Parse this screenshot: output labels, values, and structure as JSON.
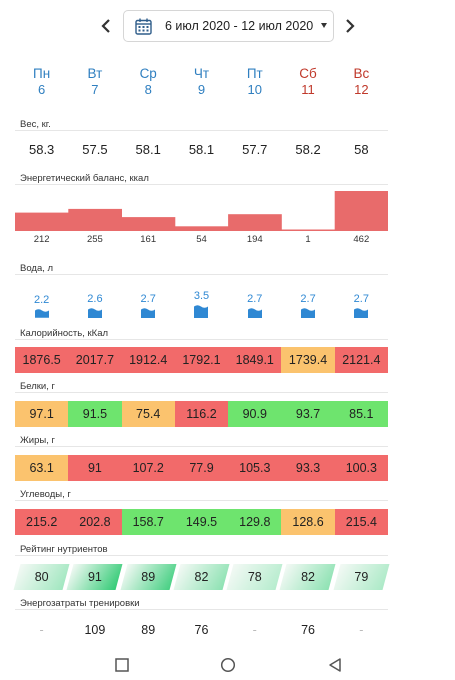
{
  "header": {
    "date_range": "6 июл 2020 - 12 июл 2020",
    "prev_icon": "chevron-left-icon",
    "next_icon": "chevron-right-icon",
    "calendar_icon": "calendar-icon"
  },
  "days": [
    {
      "name": "Пн",
      "date": "6",
      "weekend": false
    },
    {
      "name": "Вт",
      "date": "7",
      "weekend": false
    },
    {
      "name": "Ср",
      "date": "8",
      "weekend": false
    },
    {
      "name": "Чт",
      "date": "9",
      "weekend": false
    },
    {
      "name": "Пт",
      "date": "10",
      "weekend": false
    },
    {
      "name": "Сб",
      "date": "11",
      "weekend": true
    },
    {
      "name": "Вс",
      "date": "12",
      "weekend": true
    }
  ],
  "weight": {
    "label": "Вес, кг.",
    "values": [
      "58.3",
      "57.5",
      "58.1",
      "58.1",
      "57.7",
      "58.2",
      "58"
    ]
  },
  "energy_balance": {
    "label": "Энергетический баланс, ккал",
    "values": [
      212,
      255,
      161,
      54,
      194,
      1,
      462
    ],
    "color": "#e86b6b"
  },
  "water": {
    "label": "Вода, л",
    "values": [
      2.2,
      2.6,
      2.7,
      3.5,
      2.7,
      2.7,
      2.7
    ],
    "color": "#2f88d3"
  },
  "calories": {
    "label": "Калорийность, кКал",
    "values": [
      "1876.5",
      "2017.7",
      "1912.4",
      "1792.1",
      "1849.1",
      "1739.4",
      "2121.4"
    ],
    "colors": [
      "red",
      "red",
      "red",
      "red",
      "red",
      "orange",
      "red"
    ]
  },
  "protein": {
    "label": "Белки, г",
    "values": [
      "97.1",
      "91.5",
      "75.4",
      "116.2",
      "90.9",
      "93.7",
      "85.1"
    ],
    "colors": [
      "orange",
      "green",
      "orange",
      "red",
      "green",
      "green",
      "green"
    ]
  },
  "fat": {
    "label": "Жиры, г",
    "values": [
      "63.1",
      "91",
      "107.2",
      "77.9",
      "105.3",
      "93.3",
      "100.3"
    ],
    "colors": [
      "orange",
      "red",
      "red",
      "red",
      "red",
      "red",
      "red"
    ]
  },
  "carbs": {
    "label": "Углеводы, г",
    "values": [
      "215.2",
      "202.8",
      "158.7",
      "149.5",
      "129.8",
      "128.6",
      "215.4"
    ],
    "colors": [
      "red",
      "red",
      "green",
      "green",
      "green",
      "orange",
      "red"
    ]
  },
  "nutrient_rating": {
    "label": "Рейтинг нутриентов",
    "values": [
      80,
      91,
      89,
      82,
      78,
      82,
      79
    ]
  },
  "training_energy": {
    "label": "Энергозатраты тренировки",
    "values": [
      "-",
      "109",
      "89",
      "76",
      "-",
      "76",
      "-"
    ]
  },
  "navbar": {
    "recent_icon": "square-icon",
    "home_icon": "circle-icon",
    "back_icon": "triangle-back-icon"
  }
}
